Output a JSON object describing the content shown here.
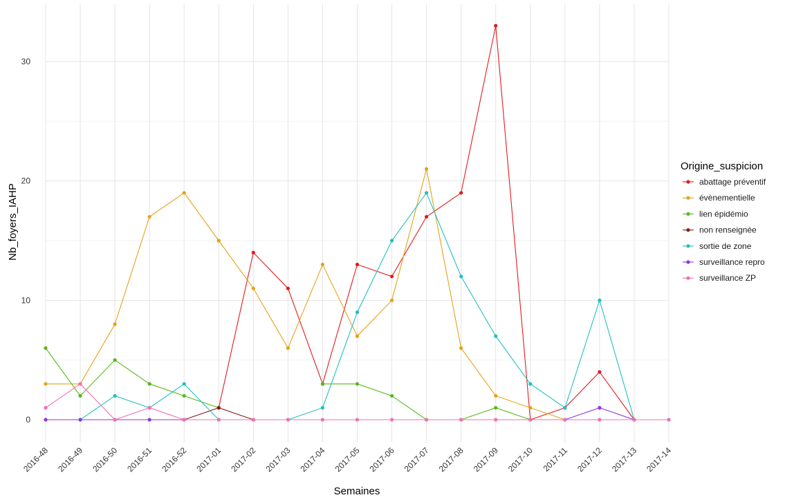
{
  "chart_data": {
    "type": "line",
    "xlabel": "Semaines",
    "ylabel": "Nb_foyers_IAHP",
    "categories": [
      "2016-48",
      "2016-49",
      "2016-50",
      "2016-51",
      "2016-52",
      "2017-01",
      "2017-02",
      "2017-03",
      "2017-04",
      "2017-05",
      "2017-06",
      "2017-07",
      "2017-08",
      "2017-09",
      "2017-10",
      "2017-11",
      "2017-12",
      "2017-13",
      "2017-14"
    ],
    "ylim": [
      0,
      33
    ],
    "yticks": [
      0,
      10,
      20,
      30
    ],
    "grid": true,
    "legend_title": "Origine_suspicion",
    "legend_position": "right",
    "series": [
      {
        "name": "abattage préventif",
        "color": "#e31a1c",
        "values": [
          null,
          null,
          null,
          null,
          null,
          1,
          14,
          11,
          3,
          13,
          12,
          17,
          19,
          33,
          0,
          1,
          4,
          0,
          null
        ]
      },
      {
        "name": "évènementielle",
        "color": "#e6a117",
        "values": [
          3,
          3,
          8,
          17,
          19,
          15,
          11,
          6,
          13,
          7,
          10,
          21,
          6,
          2,
          1,
          0,
          null,
          null,
          null
        ]
      },
      {
        "name": "lien épidémio",
        "color": "#56b81a",
        "values": [
          6,
          2,
          5,
          3,
          2,
          1,
          null,
          null,
          3,
          3,
          2,
          0,
          0,
          1,
          0,
          null,
          null,
          null,
          null
        ]
      },
      {
        "name": "non renseignée",
        "color": "#8b1a1a",
        "values": [
          null,
          null,
          null,
          null,
          0,
          1,
          0,
          null,
          null,
          null,
          null,
          null,
          null,
          null,
          null,
          null,
          null,
          null,
          null
        ]
      },
      {
        "name": "sortie de zone",
        "color": "#1fbfc4",
        "values": [
          null,
          0,
          2,
          1,
          3,
          0,
          0,
          0,
          1,
          9,
          15,
          19,
          12,
          7,
          3,
          1,
          10,
          0,
          0
        ]
      },
      {
        "name": "surveillance repro",
        "color": "#8f35d8",
        "values": [
          0,
          0,
          0,
          0,
          0,
          null,
          null,
          null,
          null,
          null,
          null,
          null,
          null,
          null,
          null,
          0,
          1,
          0,
          null
        ]
      },
      {
        "name": "surveillance ZP",
        "color": "#ef6fb6",
        "values": [
          1,
          3,
          0,
          1,
          0,
          0,
          0,
          0,
          0,
          0,
          0,
          0,
          0,
          0,
          0,
          0,
          0,
          0,
          0
        ]
      }
    ]
  }
}
